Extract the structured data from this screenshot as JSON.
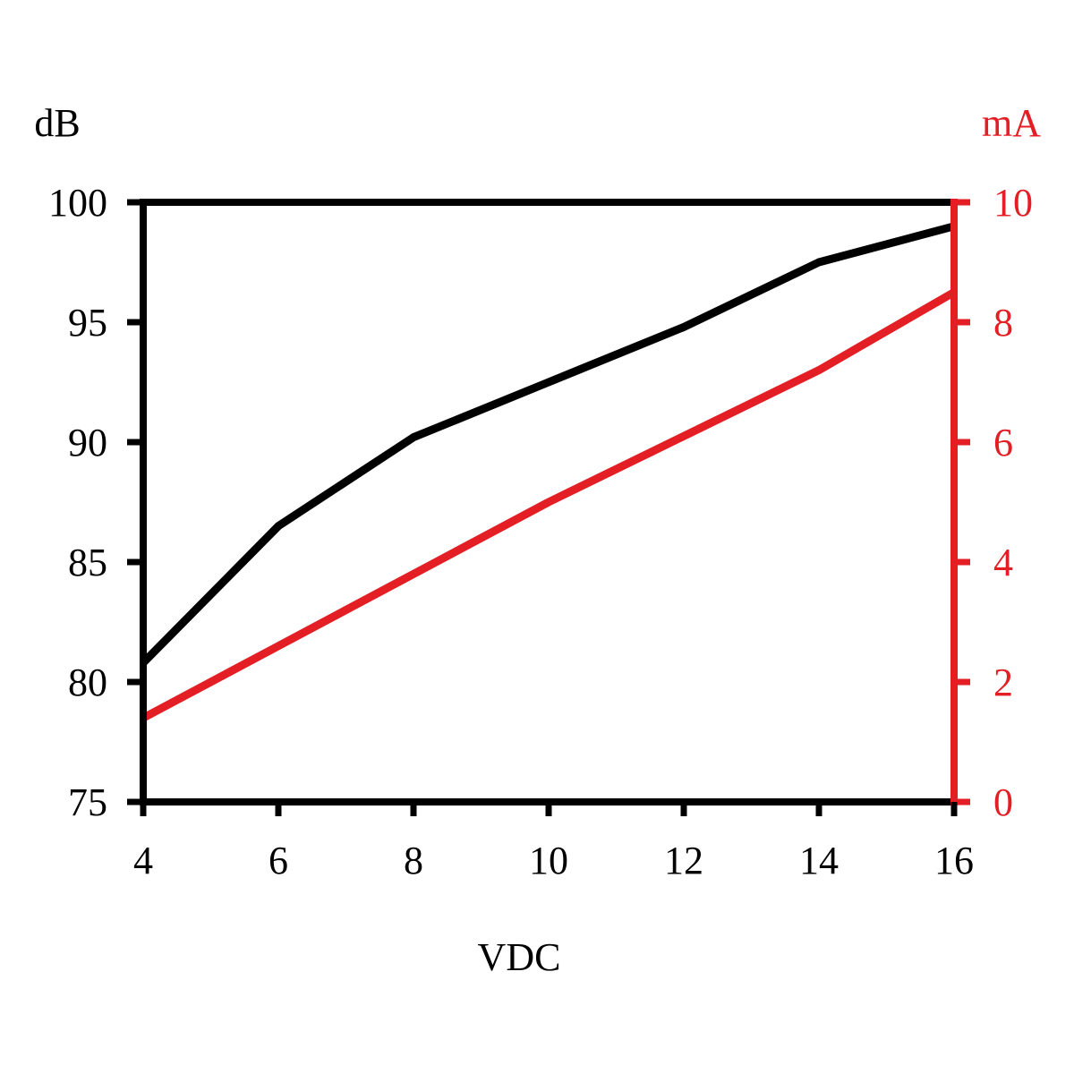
{
  "chart_data": {
    "type": "line",
    "xlabel": "VDC",
    "ylabel_left": "dB",
    "ylabel_right": "mA",
    "x": [
      4,
      6,
      8,
      10,
      12,
      14,
      16
    ],
    "xlim": [
      4,
      16
    ],
    "ylim_left": [
      75,
      100
    ],
    "ylim_right": [
      0,
      10
    ],
    "x_ticks": [
      "4",
      "6",
      "8",
      "10",
      "12",
      "14",
      "16"
    ],
    "y_left_ticks": [
      "75",
      "80",
      "85",
      "90",
      "95",
      "100"
    ],
    "y_right_ticks": [
      "0",
      "2",
      "4",
      "6",
      "8",
      "10"
    ],
    "grid": false,
    "series": [
      {
        "axis": "left",
        "color": "#000000",
        "values": [
          80.8,
          86.5,
          90.2,
          92.5,
          94.8,
          97.5,
          99.0
        ]
      },
      {
        "axis": "right",
        "color": "#e31e24",
        "values": [
          1.4,
          2.6,
          3.8,
          5.0,
          6.1,
          7.2,
          8.5
        ]
      }
    ],
    "colors": {
      "left_axis": "#000000",
      "right_axis": "#e31e24"
    }
  }
}
